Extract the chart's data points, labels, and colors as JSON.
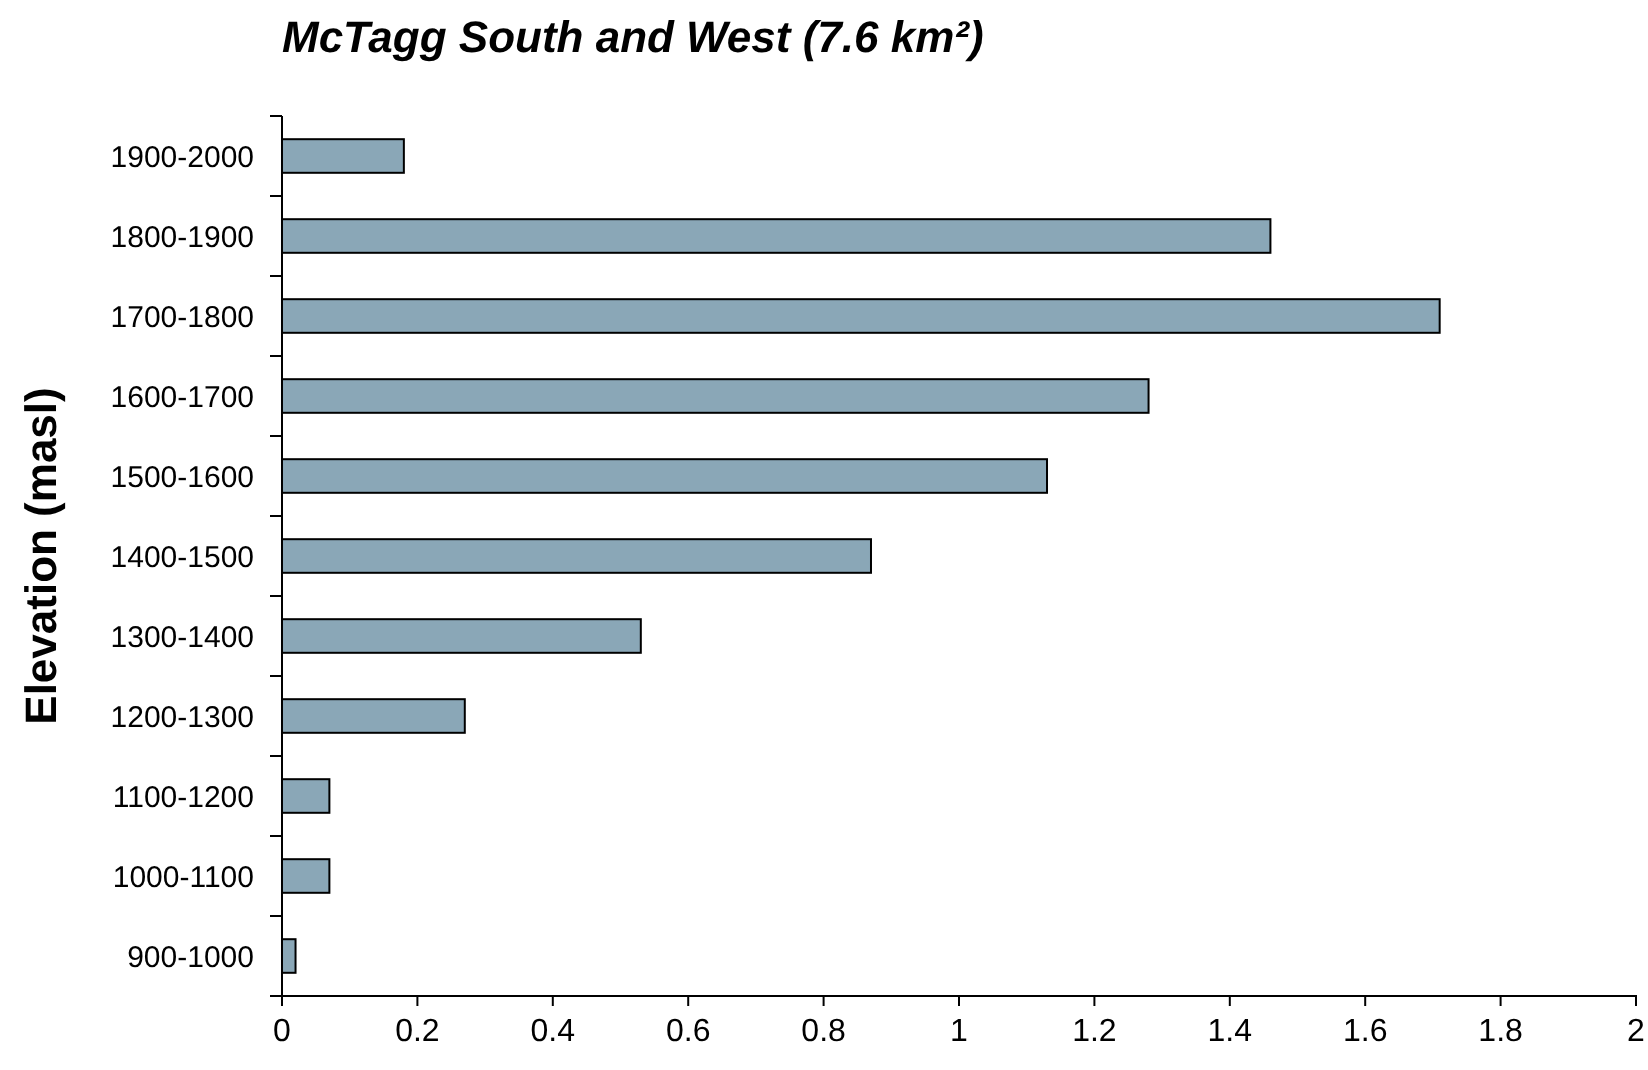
{
  "chart_data": {
    "type": "bar",
    "orientation": "horizontal",
    "title": "McTagg South and West (7.6 km²)",
    "ylabel": "Elevation (masl)",
    "categories": [
      "1900-2000",
      "1800-1900",
      "1700-1800",
      "1600-1700",
      "1500-1600",
      "1400-1500",
      "1300-1400",
      "1200-1300",
      "1100-1200",
      "1000-1100",
      "900-1000"
    ],
    "values": [
      0.18,
      1.46,
      1.71,
      1.28,
      1.13,
      0.87,
      0.53,
      0.27,
      0.07,
      0.07,
      0.02
    ],
    "color": "#8aa7b7",
    "xlim": [
      0,
      2
    ],
    "xticks": [
      0,
      0.2,
      0.4,
      0.6,
      0.8,
      1,
      1.2,
      1.4,
      1.6,
      1.8,
      2
    ],
    "grid": false
  }
}
